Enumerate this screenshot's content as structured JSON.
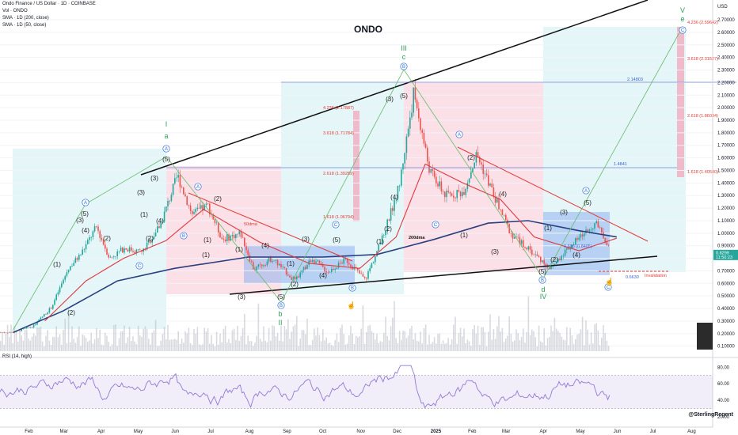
{
  "header": {
    "symbol_line": "Ondo Finance / US Dollar · 1D · COINBASE",
    "indicator_1": "Vol · ONDO",
    "indicator_2": "SMA · 1D (200, close)",
    "indicator_3": "SMA · 1D (50, close)"
  },
  "currency": "USD",
  "chart_title": "ONDO",
  "rsi_label": "RSI (14, high)",
  "credit": "@SterlingRegent",
  "price_label": {
    "value": "0.8299",
    "sub": "11:50:23"
  },
  "fib_labels_left": [
    "4.236 (2.17887)",
    "3.618 (1.71784)",
    "2.618 (1.39259)",
    "1.618 (1.06794)"
  ],
  "fib_labels_right": [
    "4.236 (2.59642)",
    "3.618 (2.31527)",
    "2.618 (1.86034)",
    "1.618 (1.40540)"
  ],
  "level_labels": {
    "a": "2.14803",
    "b": "1.4841",
    "c": "0.6630",
    "invalidation": "Invalidation",
    "ma200": "200dma",
    "ma50": "50dma",
    "inner": "0.618 (0.8405)"
  },
  "wave_labels": {
    "green": [
      "I",
      "a",
      "II",
      "b",
      "III",
      "c",
      "IV",
      "d",
      "V",
      "e"
    ],
    "black": [
      "(1)",
      "(2)",
      "(3)",
      "(4)",
      "(5)",
      "(1)",
      "(2)",
      "(3)",
      "(4)",
      "(5)",
      "(1)",
      "(2)",
      "(3)",
      "(4)",
      "(5)",
      "(1)",
      "(2)",
      "(3)",
      "(4)",
      "(5)",
      "(1)",
      "(2)",
      "(3)",
      "(4)",
      "(5)",
      "(1)",
      "(2)",
      "(3)",
      "(4)",
      "(5)",
      "(1)",
      "(2)",
      "(3)",
      "(4)",
      "(5)",
      "(3)",
      "(2)",
      "(1)",
      "(1)"
    ],
    "circled": [
      "A",
      "B",
      "C",
      "A",
      "B",
      "C",
      "A",
      "B",
      "C",
      "A",
      "B",
      "C",
      "A",
      "B",
      "C"
    ]
  },
  "colors": {
    "up": "#26a69a",
    "down": "#ef5350",
    "sma200": "#2a3f7e",
    "sma50": "#e0393e",
    "pink": "#f7c6d3",
    "cyan": "#cdeff2",
    "blue": "#8fb3ef",
    "rsi": "#8f7ad6",
    "volume": "#b9bcc4",
    "trend": "#111111"
  },
  "chart_data": {
    "type": "candlestick",
    "x_ticks": [
      "Feb",
      "Mar",
      "Apr",
      "May",
      "Jun",
      "Jul",
      "Aug",
      "Sep",
      "Oct",
      "Nov",
      "Dec",
      "2025",
      "Feb",
      "Mar",
      "Apr",
      "May",
      "Jun",
      "Jul",
      "Aug"
    ],
    "y_ticks": [
      0.1,
      0.2,
      0.3,
      0.4,
      0.5,
      0.6,
      0.7,
      0.8,
      0.9,
      1.0,
      1.1,
      1.2,
      1.3,
      1.4,
      1.5,
      1.6,
      1.7,
      1.8,
      1.9,
      2.0,
      2.1,
      2.2,
      2.3,
      2.4,
      2.5,
      2.6,
      2.7
    ],
    "y_tick_labels": [
      "0.10000",
      "0.20000",
      "0.30000",
      "0.40000",
      "0.50000",
      "0.60000",
      "0.70000",
      "0.80000",
      "0.90000",
      "1.00000",
      "1.10000",
      "1.20000",
      "1.30000",
      "1.40000",
      "1.50000",
      "1.60000",
      "1.70000",
      "1.80000",
      "1.90000",
      "2.00000",
      "2.10000",
      "2.20000",
      "2.30000",
      "2.40000",
      "2.50000",
      "2.60000",
      "2.70000"
    ],
    "ylim": [
      0.06,
      2.82
    ],
    "rsi_ticks": [
      20.0,
      40.0,
      60.0,
      80.0
    ],
    "rsi_tick_labels": [
      "20.00",
      "40.00",
      "60.00",
      "80.00"
    ],
    "rsi_lim": [
      17,
      86
    ],
    "close_path": [
      {
        "d": "2024-01-20",
        "v": 0.21
      },
      {
        "d": "2024-02-05",
        "v": 0.26
      },
      {
        "d": "2024-02-20",
        "v": 0.41
      },
      {
        "d": "2024-03-05",
        "v": 0.72
      },
      {
        "d": "2024-03-15",
        "v": 0.83
      },
      {
        "d": "2024-03-28",
        "v": 1.05
      },
      {
        "d": "2024-04-08",
        "v": 0.8
      },
      {
        "d": "2024-04-20",
        "v": 0.88
      },
      {
        "d": "2024-05-05",
        "v": 0.85
      },
      {
        "d": "2024-05-20",
        "v": 1.07
      },
      {
        "d": "2024-06-03",
        "v": 1.46
      },
      {
        "d": "2024-06-15",
        "v": 1.15
      },
      {
        "d": "2024-06-28",
        "v": 1.22
      },
      {
        "d": "2024-07-10",
        "v": 0.95
      },
      {
        "d": "2024-07-25",
        "v": 1.0
      },
      {
        "d": "2024-08-05",
        "v": 0.71
      },
      {
        "d": "2024-08-20",
        "v": 0.8
      },
      {
        "d": "2024-09-08",
        "v": 0.62
      },
      {
        "d": "2024-09-22",
        "v": 0.8
      },
      {
        "d": "2024-10-05",
        "v": 0.69
      },
      {
        "d": "2024-10-20",
        "v": 0.79
      },
      {
        "d": "2024-11-05",
        "v": 0.63
      },
      {
        "d": "2024-11-20",
        "v": 0.98
      },
      {
        "d": "2024-12-03",
        "v": 1.38
      },
      {
        "d": "2024-12-15",
        "v": 2.12
      },
      {
        "d": "2024-12-28",
        "v": 1.5
      },
      {
        "d": "2025-01-10",
        "v": 1.3
      },
      {
        "d": "2025-01-25",
        "v": 1.33
      },
      {
        "d": "2025-02-05",
        "v": 1.63
      },
      {
        "d": "2025-02-20",
        "v": 1.28
      },
      {
        "d": "2025-03-05",
        "v": 1.0
      },
      {
        "d": "2025-03-20",
        "v": 0.87
      },
      {
        "d": "2025-04-07",
        "v": 0.72
      },
      {
        "d": "2025-04-20",
        "v": 0.87
      },
      {
        "d": "2025-05-05",
        "v": 1.0
      },
      {
        "d": "2025-05-14",
        "v": 1.08
      },
      {
        "d": "2025-05-25",
        "v": 0.9
      },
      {
        "d": "2025-06-01",
        "v": 0.83
      }
    ],
    "sma200_path": [
      {
        "d": "2024-01-20",
        "v": 0.21
      },
      {
        "d": "2024-03-01",
        "v": 0.38
      },
      {
        "d": "2024-04-15",
        "v": 0.62
      },
      {
        "d": "2024-06-01",
        "v": 0.72
      },
      {
        "d": "2024-08-01",
        "v": 0.81
      },
      {
        "d": "2024-10-01",
        "v": 0.81
      },
      {
        "d": "2024-11-15",
        "v": 0.83
      },
      {
        "d": "2025-01-01",
        "v": 0.95
      },
      {
        "d": "2025-02-15",
        "v": 1.08
      },
      {
        "d": "2025-03-20",
        "v": 1.1
      },
      {
        "d": "2025-05-01",
        "v": 1.02
      },
      {
        "d": "2025-06-01",
        "v": 0.97
      }
    ],
    "sma50_path": [
      {
        "d": "2024-02-15",
        "v": 0.3
      },
      {
        "d": "2024-03-20",
        "v": 0.62
      },
      {
        "d": "2024-04-20",
        "v": 0.8
      },
      {
        "d": "2024-05-25",
        "v": 0.94
      },
      {
        "d": "2024-06-25",
        "v": 1.19
      },
      {
        "d": "2024-08-10",
        "v": 0.93
      },
      {
        "d": "2024-09-20",
        "v": 0.76
      },
      {
        "d": "2024-11-01",
        "v": 0.72
      },
      {
        "d": "2024-12-01",
        "v": 0.97
      },
      {
        "d": "2024-12-25",
        "v": 1.55
      },
      {
        "d": "2025-01-25",
        "v": 1.4
      },
      {
        "d": "2025-02-25",
        "v": 1.27
      },
      {
        "d": "2025-03-25",
        "v": 0.97
      },
      {
        "d": "2025-05-01",
        "v": 0.86
      },
      {
        "d": "2025-06-01",
        "v": 0.96
      }
    ]
  }
}
